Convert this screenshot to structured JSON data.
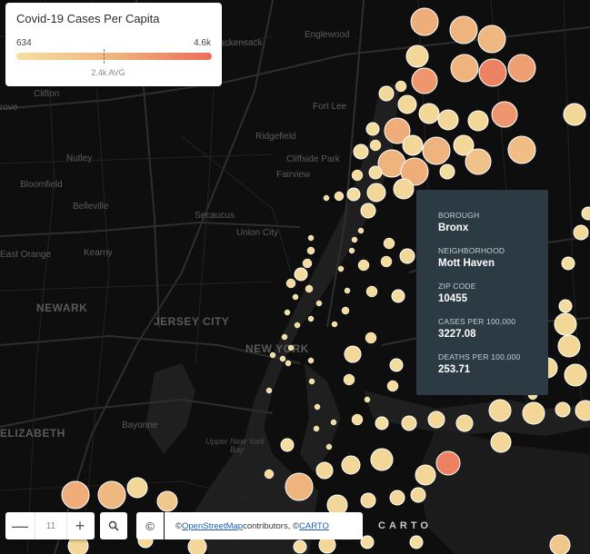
{
  "legend": {
    "title": "Covid-19 Cases Per Capita",
    "min": "634",
    "max": "4.6k",
    "avg": "2.4k AVG"
  },
  "colors": {
    "low": "#f3e0a0",
    "mid": "#efb47e",
    "high": "#ec6c58",
    "popup_bg": "#2c3a44",
    "map_bg": "#0e0e0e"
  },
  "map_labels": [
    {
      "text": "Hackensack",
      "kind": "town"
    },
    {
      "text": "Englewood",
      "kind": "town"
    },
    {
      "text": "Clifton",
      "kind": "town"
    },
    {
      "text": "Fort Lee",
      "kind": "town"
    },
    {
      "text": "Ridgefield",
      "kind": "town"
    },
    {
      "text": "Nutley",
      "kind": "town"
    },
    {
      "text": "Cliffside Park",
      "kind": "town"
    },
    {
      "text": "Fairview",
      "kind": "town"
    },
    {
      "text": "Bloomfield",
      "kind": "town"
    },
    {
      "text": "Belleville",
      "kind": "town"
    },
    {
      "text": "Secaucus",
      "kind": "town"
    },
    {
      "text": "Union City",
      "kind": "town"
    },
    {
      "text": "Kearny",
      "kind": "town"
    },
    {
      "text": "East Orange",
      "kind": "town"
    },
    {
      "text": "NEWARK",
      "kind": "city"
    },
    {
      "text": "JERSEY CITY",
      "kind": "city"
    },
    {
      "text": "NEW YORK",
      "kind": "city"
    },
    {
      "text": "Bayonne",
      "kind": "town"
    },
    {
      "text": "Upper New York",
      "kind": "water"
    },
    {
      "text": "Bay",
      "kind": "water"
    },
    {
      "text": "ELIZABETH",
      "kind": "city"
    },
    {
      "text": "rove",
      "kind": "town"
    }
  ],
  "popup": {
    "borough_label": "BOROUGH",
    "borough": "Bronx",
    "neighborhood_label": "NEIGHBORHOOD",
    "neighborhood": "Mott Haven",
    "zip_label": "ZIP CODE",
    "zip": "10455",
    "cases_label": "CASES PER 100,000",
    "cases": "3227.08",
    "deaths_label": "DEATHS PER 100,000",
    "deaths": "253.71"
  },
  "controls": {
    "zoom_out": "—",
    "zoom_level": "11",
    "zoom_in": "+",
    "search_icon": "search-icon",
    "attr_symbol": "©"
  },
  "attribution": {
    "prefix": "© ",
    "osm": "OpenStreetMap",
    "mid": " contributors, © ",
    "carto": "CARTO"
  },
  "carto_logo": "CARTO"
}
